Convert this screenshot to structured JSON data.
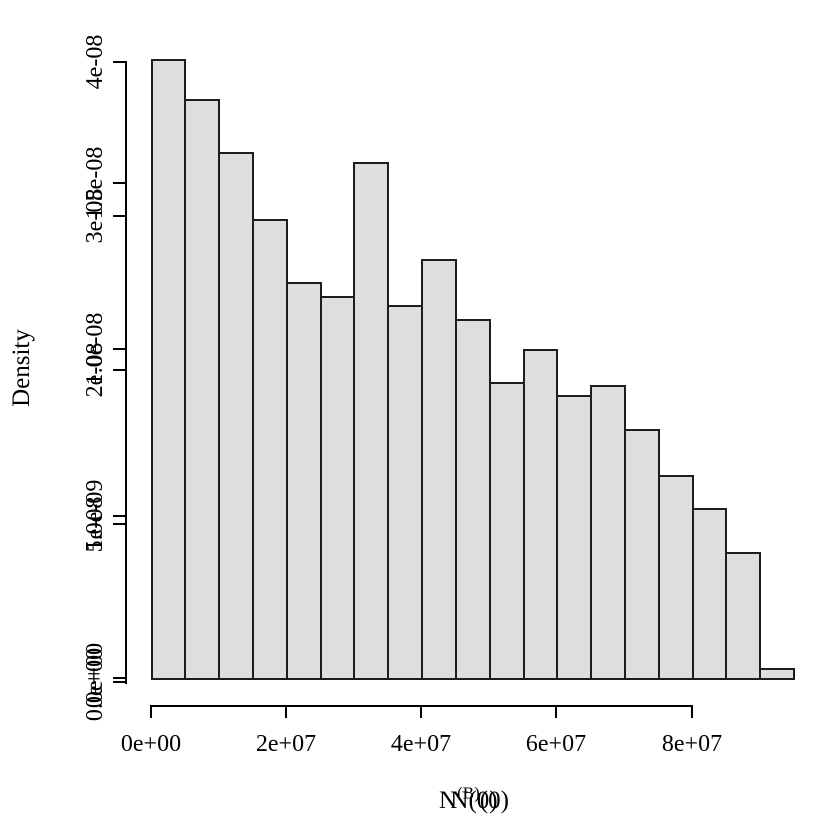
{
  "figure": {
    "background": "#ffffff",
    "text_color": "#000000",
    "bar_fill": "#dedede",
    "bar_border": "#1d1d1d",
    "note": "Two R base-graphics histograms over-plotted on one device; their y-axis tick labels and x-axis titles overlap each other"
  },
  "chart_data": {
    "type": "bar",
    "subtype": "histogram",
    "title": "",
    "ylabel": "Density",
    "xlabel_overlay": {
      "plain": "N(0)",
      "base": "N",
      "sup": "(B)",
      "tail": "(0)"
    },
    "bin_start": 0,
    "bin_width": 5000000.0,
    "bin_edges": [
      0,
      5000000.0,
      10000000.0,
      15000000.0,
      20000000.0,
      25000000.0,
      30000000.0,
      35000000.0,
      40000000.0,
      45000000.0,
      50000000.0,
      55000000.0,
      60000000.0,
      65000000.0,
      70000000.0,
      75000000.0,
      80000000.0,
      85000000.0,
      90000000.0,
      95000000.0
    ],
    "densities": [
      1.86e-08,
      1.74e-08,
      1.58e-08,
      1.38e-08,
      1.19e-08,
      1.15e-08,
      1.55e-08,
      1.12e-08,
      1.26e-08,
      1.08e-08,
      8.9e-09,
      9.9e-09,
      8.5e-09,
      8.8e-09,
      7.5e-09,
      6.1e-09,
      5.1e-09,
      3.8e-09,
      3e-10
    ],
    "bar_values_read_on_primary_axis": [
      4.03e-08,
      3.77e-08,
      3.4e-08,
      2.97e-08,
      2.57e-08,
      2.47e-08,
      3.36e-08,
      2.42e-08,
      2.72e-08,
      2.33e-08,
      1.93e-08,
      2.14e-08,
      1.83e-08,
      1.9e-08,
      1.62e-08,
      1.32e-08,
      1.11e-08,
      8.1e-09,
      6e-10
    ],
    "x_axis": {
      "tick_values": [
        0,
        20000000.0,
        40000000.0,
        60000000.0,
        80000000.0
      ],
      "tick_labels": [
        "0e+00",
        "2e+07",
        "4e+07",
        "6e+07",
        "8e+07"
      ]
    },
    "y_axis_primary": {
      "tick_values": [
        0,
        1e-08,
        2e-08,
        3e-08,
        4e-08
      ],
      "tick_labels": [
        "0e+00",
        "1e-08",
        "2e-08",
        "3e-08",
        "4e-08"
      ]
    },
    "y_axis_secondary": {
      "tick_values": [
        0,
        5e-09,
        1e-08,
        1.5e-08
      ],
      "tick_labels": [
        "0.0e+00",
        "5.0e-09",
        "1.0e-08",
        "1.5e-08"
      ]
    },
    "xlim": [
      0,
      95000000.0
    ],
    "ylim_primary": [
      0,
      4.1e-08
    ],
    "ylim_secondary": [
      0,
      1.55e-08
    ],
    "grid": false,
    "legend": false
  }
}
